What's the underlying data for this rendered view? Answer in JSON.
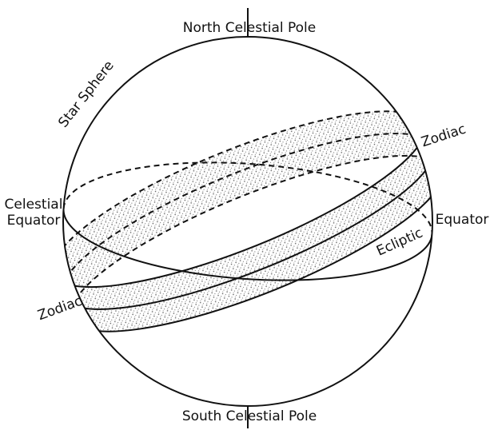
{
  "labels": {
    "north_pole": "North Celestial Pole",
    "star_sphere": "Star Sphere",
    "zodiac_right": "Zodiac",
    "celestial_equator_line1": "Celestial",
    "celestial_equator_line2": "Equator",
    "equator_right": "Equator",
    "ecliptic": "Ecliptic",
    "zodiac_left": "Zodiac",
    "south_pole": "South Celestial Pole"
  }
}
